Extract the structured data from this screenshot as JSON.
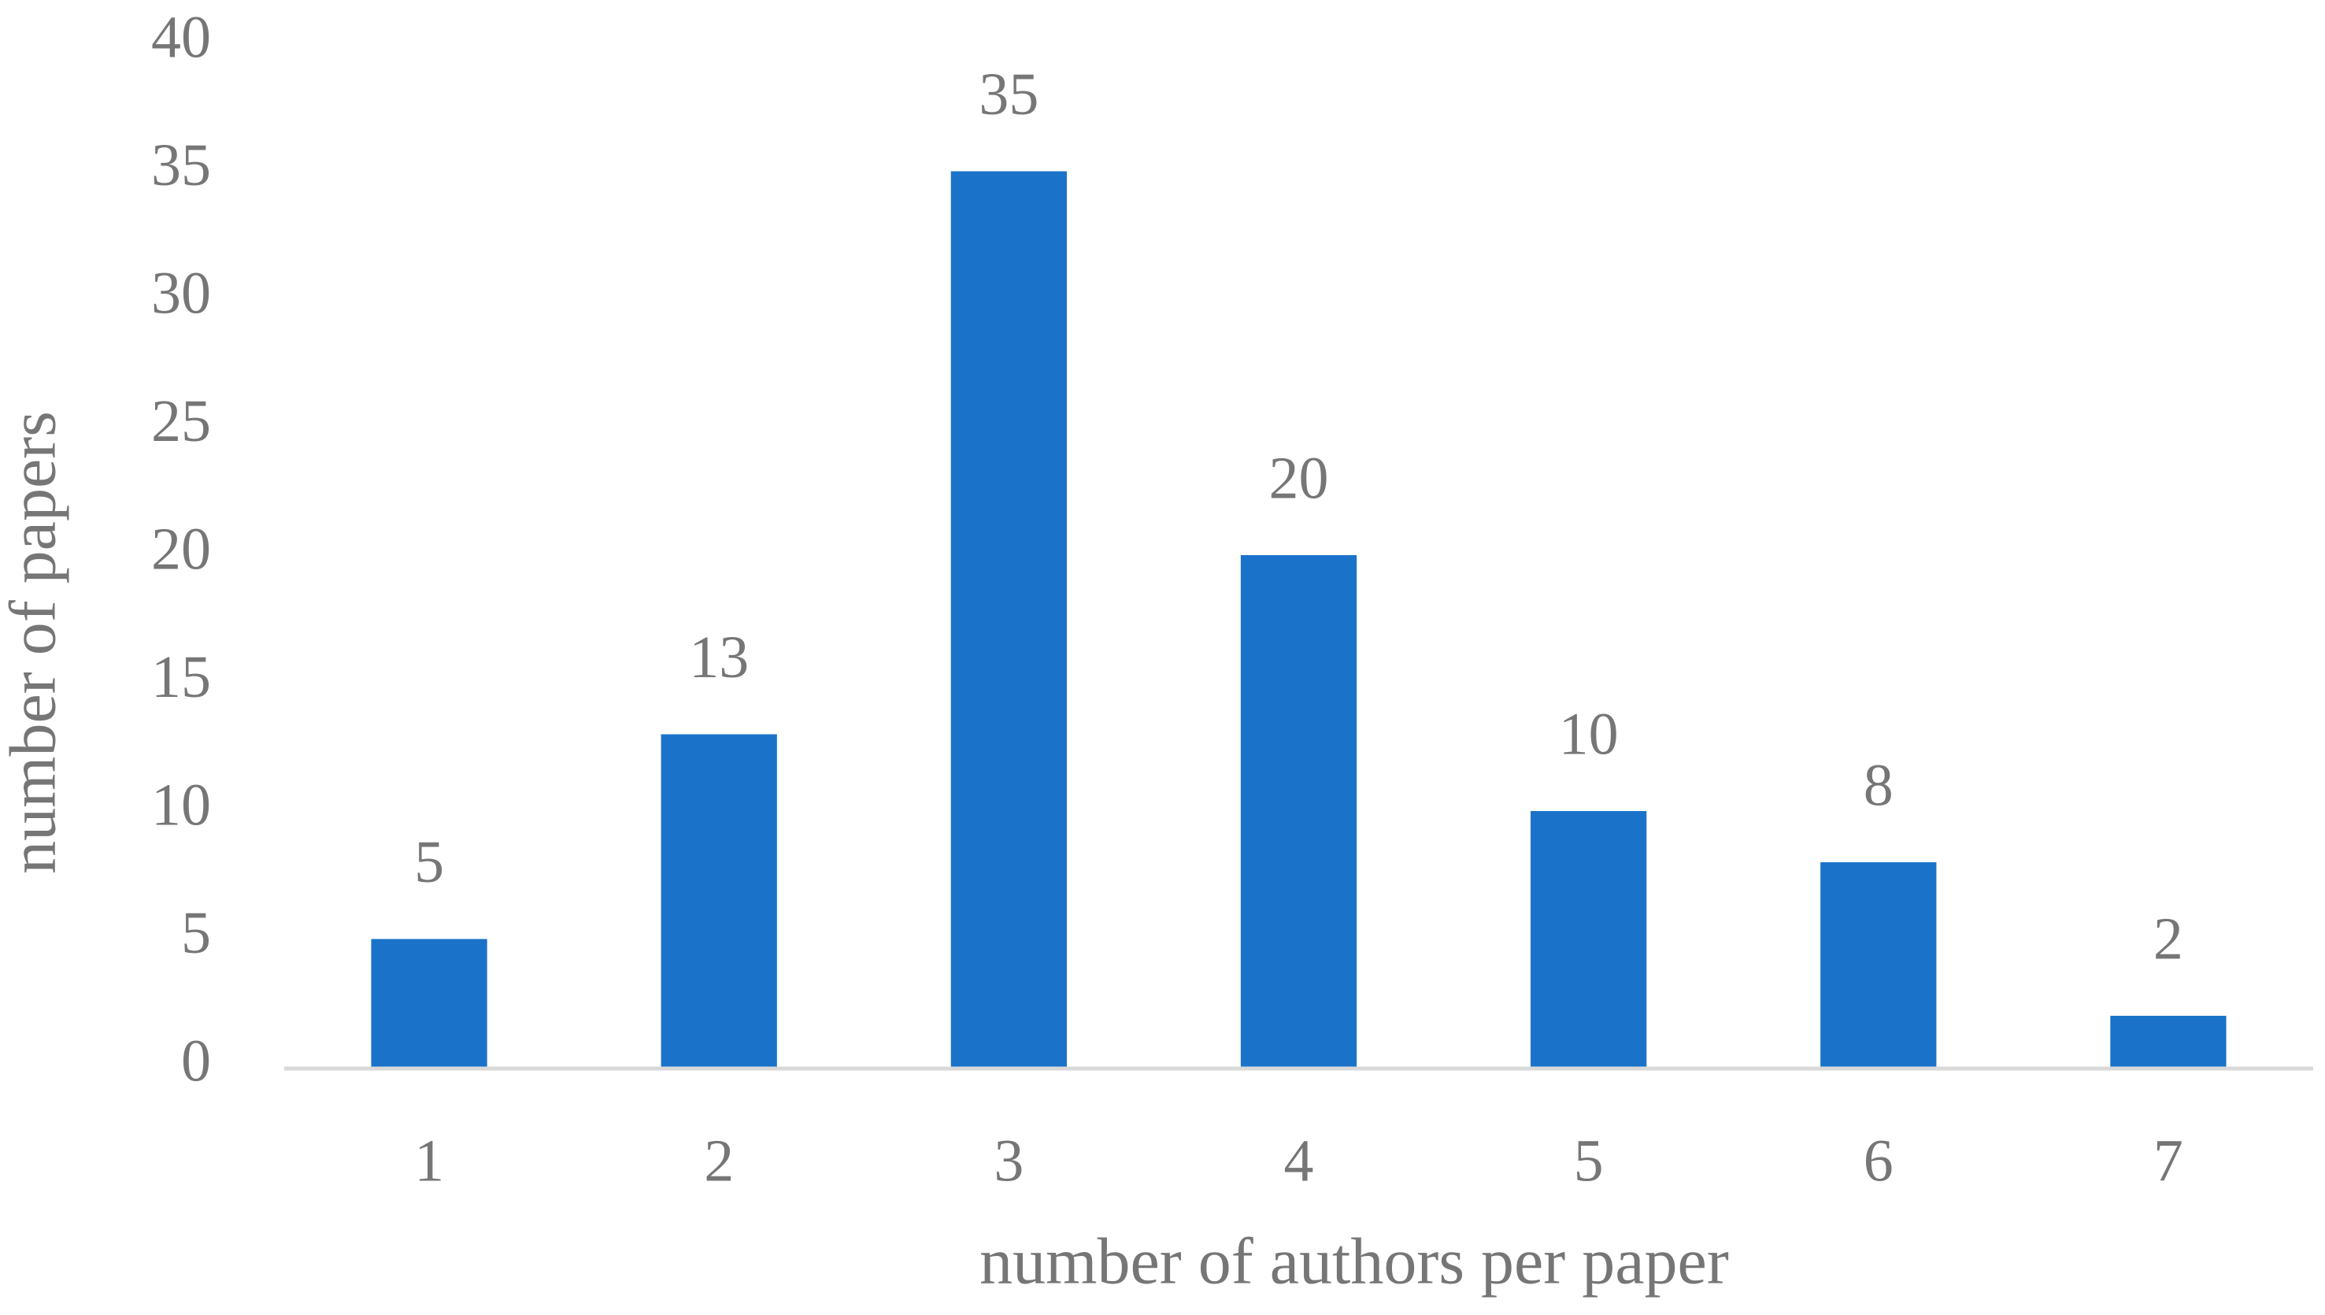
{
  "chart_data": {
    "type": "bar",
    "x_label": "number of authors per paper",
    "y_label": "number of papers",
    "categories": [
      "1",
      "2",
      "3",
      "4",
      "5",
      "6",
      "7"
    ],
    "values": [
      5,
      13,
      35,
      20,
      10,
      8,
      2
    ],
    "color": "#1a73c9",
    "ylim": [
      0,
      40
    ],
    "yticks": [
      0,
      5,
      10,
      15,
      20,
      25,
      30,
      35,
      40
    ],
    "grid": false,
    "data_labels": true
  }
}
